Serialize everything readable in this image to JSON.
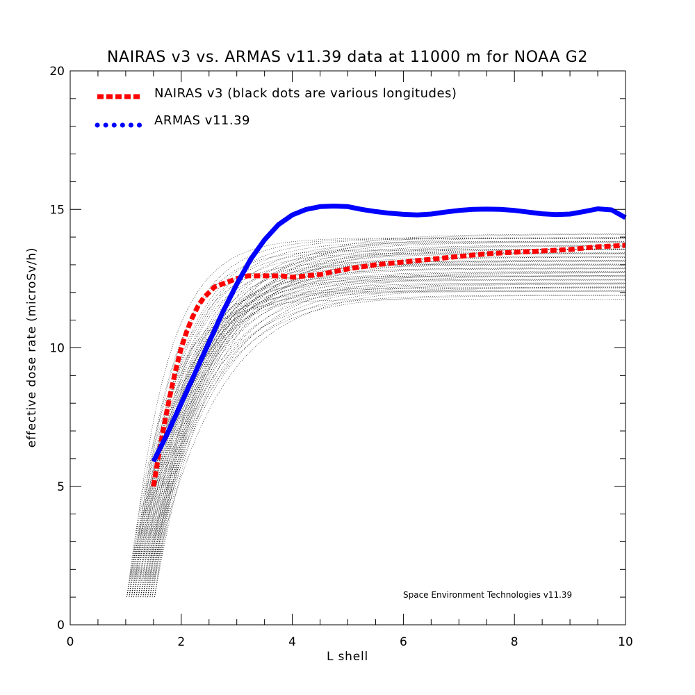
{
  "chart_data": {
    "type": "line",
    "title": "NAIRAS  v3 vs. ARMAS v11.39 data at 11000 m for NOAA G2",
    "xlabel": "L shell",
    "ylabel": "effective dose rate (microSv/h)",
    "xlim": [
      0,
      10
    ],
    "ylim": [
      0,
      20
    ],
    "x_ticks": [
      "0",
      "2",
      "4",
      "6",
      "8",
      "10"
    ],
    "y_ticks": [
      "0",
      "5",
      "10",
      "15",
      "20"
    ],
    "grid": false,
    "legend_position": "top-left",
    "credit": "Space Environment Technologies v11.39",
    "series": [
      {
        "name": "NAIRAS v3 (black dots are various longitudes)",
        "color": "#ff0000",
        "style": "dashed",
        "x": [
          1.5,
          1.6,
          1.7,
          1.8,
          1.9,
          2.0,
          2.1,
          2.2,
          2.3,
          2.4,
          2.5,
          2.6,
          2.8,
          3.0,
          3.2,
          3.5,
          3.8,
          4.0,
          4.5,
          5.0,
          5.5,
          6.0,
          6.5,
          7.0,
          7.5,
          8.0,
          8.5,
          9.0,
          9.5,
          10.0
        ],
        "y": [
          5.0,
          6.2,
          7.3,
          8.3,
          9.2,
          10.0,
          10.6,
          11.1,
          11.5,
          11.8,
          12.0,
          12.2,
          12.35,
          12.5,
          12.6,
          12.6,
          12.6,
          12.55,
          12.65,
          12.85,
          13.0,
          13.1,
          13.2,
          13.3,
          13.4,
          13.45,
          13.5,
          13.55,
          13.65,
          13.7
        ]
      },
      {
        "name": "ARMAS v11.39",
        "color": "#0000ff",
        "style": "dotted",
        "x": [
          1.5,
          1.75,
          2.0,
          2.25,
          2.5,
          2.75,
          3.0,
          3.25,
          3.5,
          3.75,
          4.0,
          4.25,
          4.5,
          4.75,
          5.0,
          5.25,
          5.5,
          5.75,
          6.0,
          6.25,
          6.5,
          6.75,
          7.0,
          7.25,
          7.5,
          7.75,
          8.0,
          8.25,
          8.5,
          8.75,
          9.0,
          9.25,
          9.5,
          9.75,
          10.0
        ],
        "y": [
          5.9,
          6.9,
          8.0,
          9.1,
          10.2,
          11.3,
          12.3,
          13.2,
          13.9,
          14.45,
          14.8,
          15.0,
          15.1,
          15.12,
          15.1,
          15.0,
          14.92,
          14.86,
          14.82,
          14.8,
          14.83,
          14.9,
          14.96,
          15.0,
          15.01,
          15.0,
          14.96,
          14.9,
          14.84,
          14.81,
          14.83,
          14.92,
          15.02,
          14.98,
          14.7
        ]
      }
    ]
  }
}
